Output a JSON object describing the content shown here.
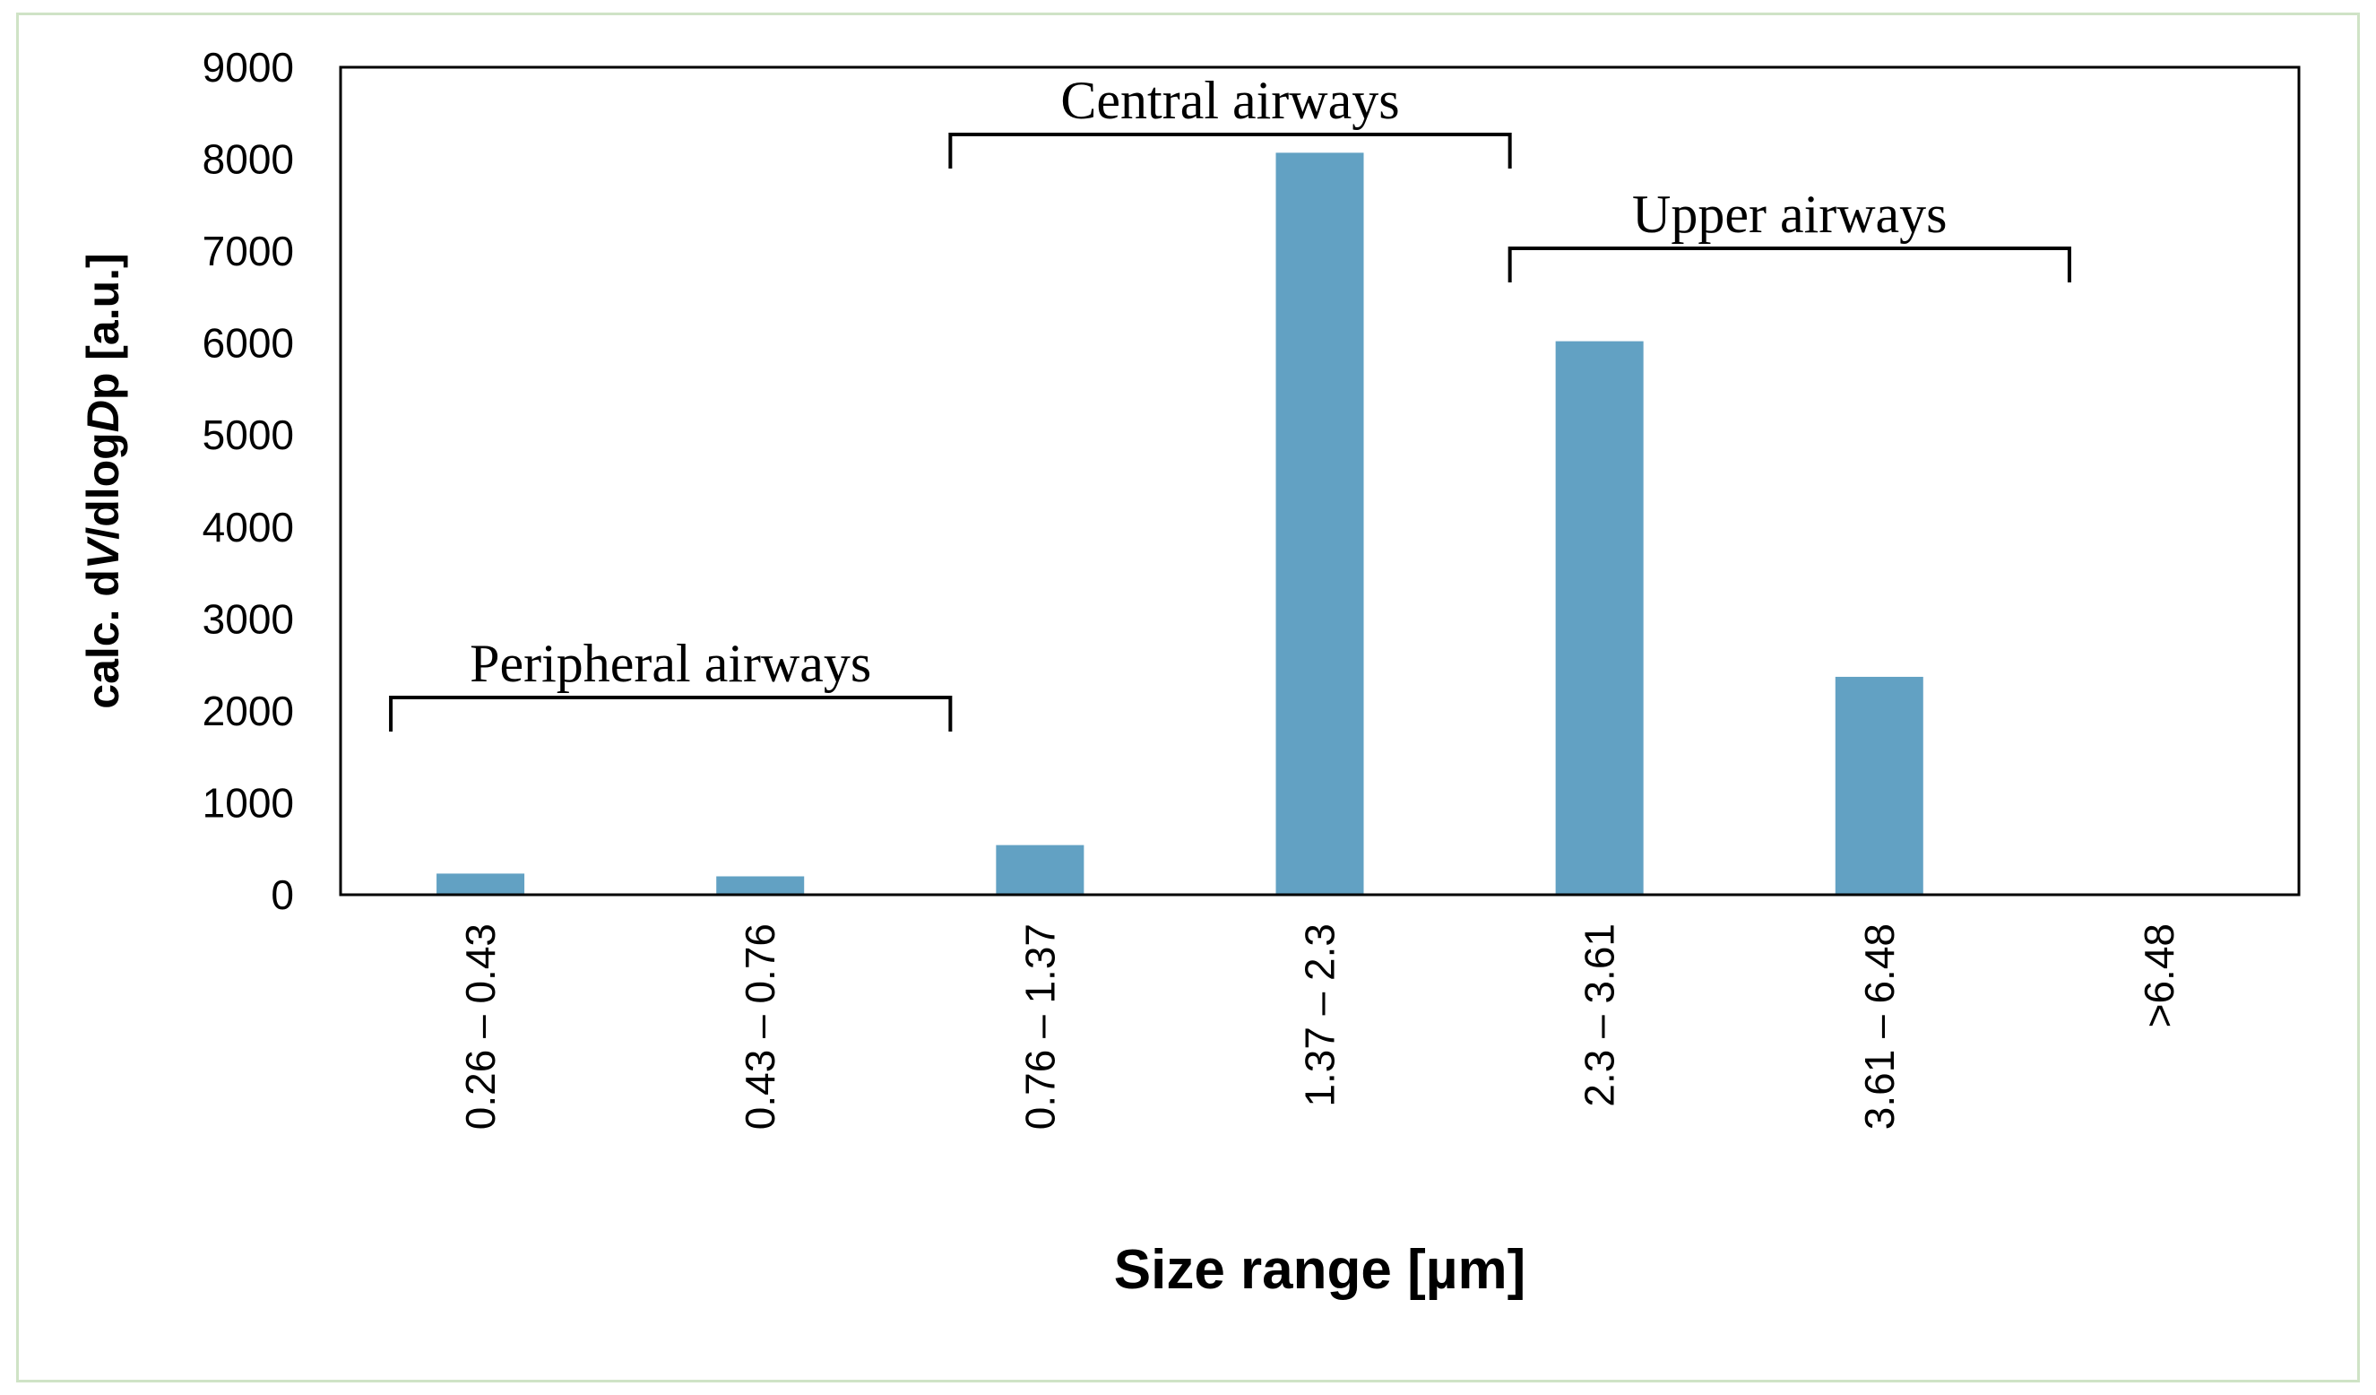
{
  "chart_data": {
    "type": "bar",
    "categories": [
      "0.26 – 0.43",
      "0.43 – 0.76",
      "0.76 – 1.37",
      "1.37 – 2.3",
      "2.3 – 3.61",
      "3.61 – 6.48",
      ">6.48"
    ],
    "values": [
      230,
      200,
      540,
      8070,
      6020,
      2370,
      0
    ],
    "xlabel": "Size range [µm]",
    "ylabel": {
      "prefix": "calc. d",
      "v": "V",
      "mid": "/dlog",
      "d": "D",
      "p": "p",
      "suffix": " [a.u.]"
    },
    "ylim": [
      0,
      9000
    ],
    "yticks": [
      0,
      1000,
      2000,
      3000,
      4000,
      5000,
      6000,
      7000,
      8000,
      9000
    ],
    "bar_color": "#62a1c3",
    "grid": false,
    "annotations": [
      {
        "label": "Peripheral airways",
        "from_category": 0,
        "to_category": 2
      },
      {
        "label": "Central airways",
        "from_category": 2,
        "to_category": 4
      },
      {
        "label": "Upper airways",
        "from_category": 4,
        "to_category": 6
      }
    ]
  }
}
